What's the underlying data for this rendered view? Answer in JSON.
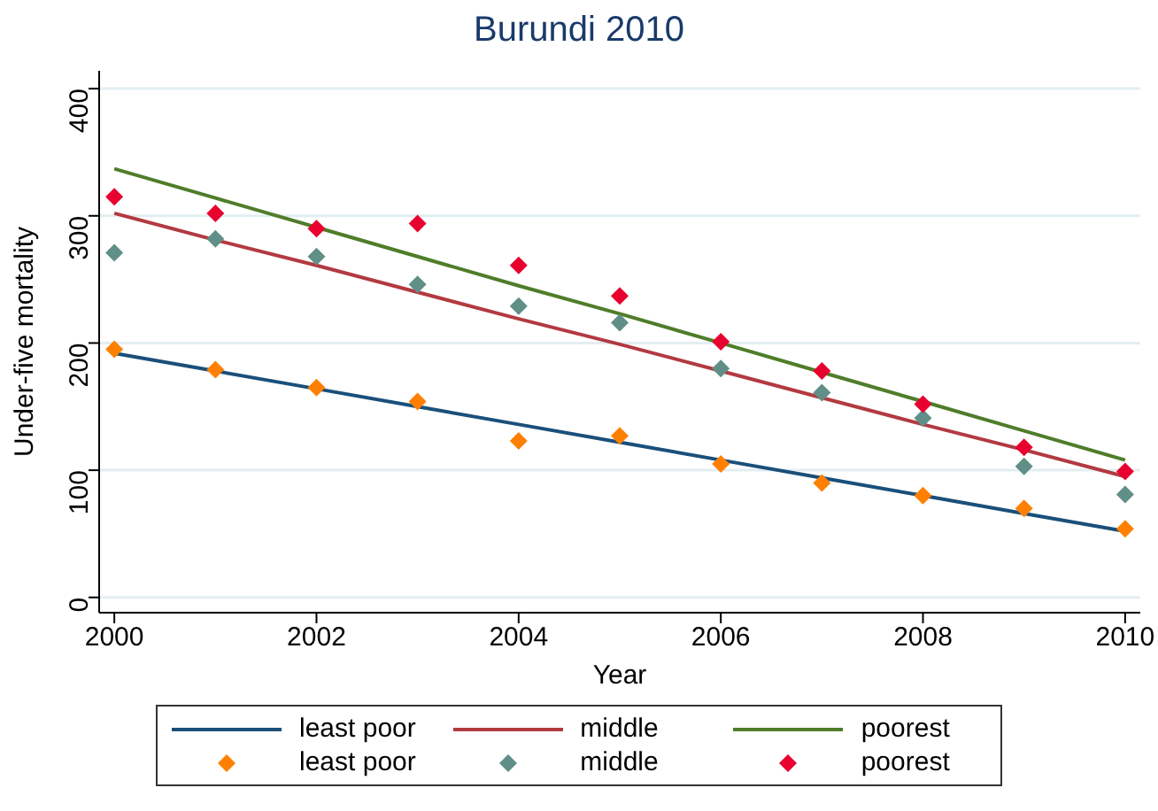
{
  "chart_data": {
    "type": "scatter",
    "title": "Burundi 2010",
    "xlabel": "Year",
    "ylabel": "Under-five mortality",
    "xlim": [
      1999.85,
      2010.15
    ],
    "xticks": [
      2000,
      2002,
      2004,
      2006,
      2008,
      2010
    ],
    "ylim": [
      -12,
      414
    ],
    "yticks": [
      0,
      100,
      200,
      300,
      400
    ],
    "grid": "y",
    "legend": "bottom",
    "marker": "diamond",
    "x": [
      2000,
      2001,
      2002,
      2003,
      2004,
      2005,
      2006,
      2007,
      2008,
      2009,
      2010
    ],
    "series": [
      {
        "name": "least poor",
        "type": "line",
        "color": "#1a4f7a",
        "values": [
          192,
          178,
          164,
          150,
          136,
          122,
          108,
          94,
          80,
          66,
          52
        ],
        "marker": "none",
        "line_style": "solid"
      },
      {
        "name": "middle",
        "type": "line",
        "color": "#b23a40",
        "values": [
          302,
          281,
          261,
          240,
          219,
          199,
          178,
          157,
          136,
          116,
          95
        ],
        "marker": "none",
        "line_style": "solid"
      },
      {
        "name": "poorest",
        "type": "line",
        "color": "#4f7d2a",
        "values": [
          337,
          314,
          291,
          268,
          245,
          223,
          200,
          177,
          154,
          131,
          108
        ],
        "marker": "none",
        "line_style": "solid"
      },
      {
        "name": "least poor",
        "color": "#ff8000",
        "values": [
          195,
          179,
          165,
          154,
          123,
          127,
          105,
          90,
          80,
          70,
          54
        ]
      },
      {
        "name": "middle",
        "color": "#5f8f86",
        "values": [
          271,
          282,
          268,
          246,
          229,
          216,
          180,
          161,
          141,
          103,
          81
        ]
      },
      {
        "name": "poorest",
        "color": "#e8002f",
        "values": [
          315,
          302,
          290,
          294,
          261,
          237,
          201,
          178,
          152,
          118,
          99
        ]
      }
    ]
  }
}
